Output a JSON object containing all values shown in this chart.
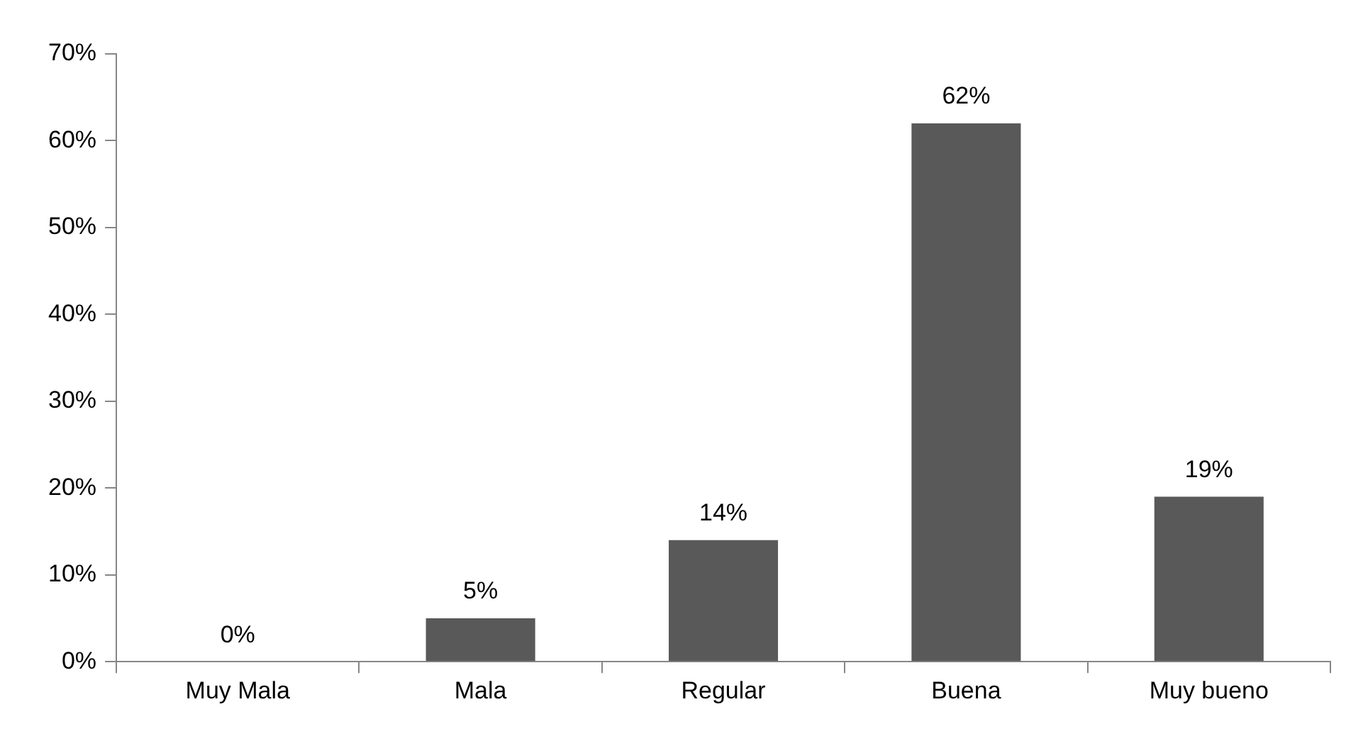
{
  "chart_data": {
    "type": "bar",
    "categories": [
      "Muy Mala",
      "Mala",
      "Regular",
      "Buena",
      "Muy bueno"
    ],
    "values": [
      0,
      5,
      14,
      62,
      19
    ],
    "value_labels": [
      "0%",
      "5%",
      "14%",
      "62%",
      "19%"
    ],
    "color": "#595959",
    "ylim": [
      0,
      70
    ],
    "yticks": [
      {
        "value": 0,
        "label": "0%"
      },
      {
        "value": 10,
        "label": "10%"
      },
      {
        "value": 20,
        "label": "20%"
      },
      {
        "value": 30,
        "label": "30%"
      },
      {
        "value": 40,
        "label": "40%"
      },
      {
        "value": 50,
        "label": "50%"
      },
      {
        "value": 60,
        "label": "60%"
      },
      {
        "value": 70,
        "label": "70%"
      }
    ],
    "grid": false,
    "legend": false
  }
}
